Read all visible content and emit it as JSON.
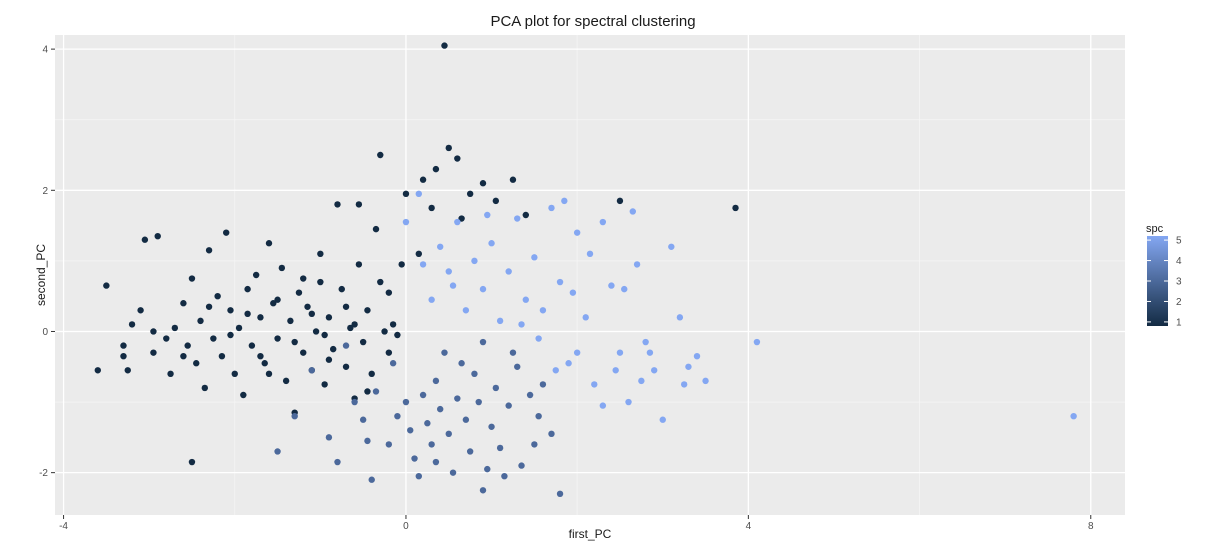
{
  "chart_data": {
    "type": "scatter",
    "title": "PCA plot for spectral clustering",
    "xlabel": "first_PC",
    "ylabel": "second_PC",
    "xlim": [
      -4.1,
      8.4
    ],
    "ylim": [
      -2.6,
      4.2
    ],
    "x_ticks": [
      -4,
      0,
      4,
      8
    ],
    "y_ticks": [
      -2,
      0,
      2,
      4
    ],
    "grid": true,
    "legend": {
      "title": "spc",
      "labels": [
        "5",
        "4",
        "3",
        "2",
        "1"
      ],
      "placement": "right",
      "low_color": "#132B43",
      "high_color": "#84A7F2"
    },
    "colors": {
      "panel_bg": "#EBEBEB",
      "major_grid": "#FFFFFF",
      "minor_grid": "#F5F5F5"
    },
    "points": [
      {
        "x": -3.6,
        "y": -0.55,
        "spc": 1
      },
      {
        "x": -3.5,
        "y": 0.65,
        "spc": 1
      },
      {
        "x": -3.3,
        "y": -0.2,
        "spc": 1
      },
      {
        "x": -3.2,
        "y": 0.1,
        "spc": 1
      },
      {
        "x": -3.05,
        "y": 1.3,
        "spc": 1
      },
      {
        "x": -2.9,
        "y": 1.35,
        "spc": 1
      },
      {
        "x": -3.1,
        "y": 0.3,
        "spc": 1
      },
      {
        "x": -2.95,
        "y": -0.3,
        "spc": 1
      },
      {
        "x": -3.25,
        "y": -0.55,
        "spc": 1
      },
      {
        "x": -2.8,
        "y": -0.1,
        "spc": 1
      },
      {
        "x": -2.7,
        "y": 0.05,
        "spc": 1
      },
      {
        "x": -2.75,
        "y": -0.6,
        "spc": 1
      },
      {
        "x": -2.6,
        "y": 0.4,
        "spc": 1
      },
      {
        "x": -2.55,
        "y": -0.2,
        "spc": 1
      },
      {
        "x": -2.5,
        "y": 0.75,
        "spc": 1
      },
      {
        "x": -2.45,
        "y": -0.45,
        "spc": 1
      },
      {
        "x": -2.4,
        "y": 0.15,
        "spc": 1
      },
      {
        "x": -2.35,
        "y": -0.8,
        "spc": 1
      },
      {
        "x": -2.5,
        "y": -1.85,
        "spc": 1
      },
      {
        "x": -2.3,
        "y": 1.15,
        "spc": 1
      },
      {
        "x": -2.25,
        "y": -0.1,
        "spc": 1
      },
      {
        "x": -2.2,
        "y": 0.5,
        "spc": 1
      },
      {
        "x": -2.15,
        "y": -0.35,
        "spc": 1
      },
      {
        "x": -2.1,
        "y": 1.4,
        "spc": 1
      },
      {
        "x": -2.05,
        "y": 0.3,
        "spc": 1
      },
      {
        "x": -2.0,
        "y": -0.6,
        "spc": 1
      },
      {
        "x": -1.95,
        "y": 0.05,
        "spc": 1
      },
      {
        "x": -1.9,
        "y": -0.9,
        "spc": 1
      },
      {
        "x": -1.85,
        "y": 0.6,
        "spc": 1
      },
      {
        "x": -1.8,
        "y": -0.2,
        "spc": 1
      },
      {
        "x": -1.75,
        "y": 0.8,
        "spc": 1
      },
      {
        "x": -1.7,
        "y": 0.2,
        "spc": 1
      },
      {
        "x": -1.65,
        "y": -0.45,
        "spc": 1
      },
      {
        "x": -1.6,
        "y": 1.25,
        "spc": 1
      },
      {
        "x": -1.55,
        "y": 0.4,
        "spc": 1
      },
      {
        "x": -1.5,
        "y": -0.1,
        "spc": 1
      },
      {
        "x": -1.45,
        "y": 0.9,
        "spc": 1
      },
      {
        "x": -1.4,
        "y": -0.7,
        "spc": 1
      },
      {
        "x": -1.35,
        "y": 0.15,
        "spc": 1
      },
      {
        "x": -1.3,
        "y": -1.15,
        "spc": 1
      },
      {
        "x": -1.25,
        "y": 0.55,
        "spc": 1
      },
      {
        "x": -1.2,
        "y": -0.3,
        "spc": 1
      },
      {
        "x": -1.15,
        "y": 0.35,
        "spc": 1
      },
      {
        "x": -1.1,
        "y": -0.55,
        "spc": 1
      },
      {
        "x": -1.05,
        "y": 0.0,
        "spc": 1
      },
      {
        "x": -1.0,
        "y": 0.7,
        "spc": 1
      },
      {
        "x": -0.95,
        "y": -0.75,
        "spc": 1
      },
      {
        "x": -0.9,
        "y": 0.2,
        "spc": 1
      },
      {
        "x": -0.85,
        "y": -0.25,
        "spc": 1
      },
      {
        "x": -0.8,
        "y": 1.8,
        "spc": 1
      },
      {
        "x": -0.75,
        "y": 0.6,
        "spc": 1
      },
      {
        "x": -0.7,
        "y": -0.5,
        "spc": 1
      },
      {
        "x": -0.65,
        "y": 0.05,
        "spc": 1
      },
      {
        "x": -0.6,
        "y": -0.95,
        "spc": 1
      },
      {
        "x": -0.55,
        "y": 0.95,
        "spc": 1
      },
      {
        "x": -0.5,
        "y": -0.15,
        "spc": 1
      },
      {
        "x": -0.45,
        "y": 0.3,
        "spc": 1
      },
      {
        "x": -0.4,
        "y": -0.6,
        "spc": 1
      },
      {
        "x": -0.35,
        "y": 1.45,
        "spc": 1
      },
      {
        "x": -0.3,
        "y": 2.5,
        "spc": 1
      },
      {
        "x": -0.25,
        "y": 0.0,
        "spc": 1
      },
      {
        "x": -0.2,
        "y": -0.3,
        "spc": 1
      },
      {
        "x": -0.15,
        "y": 0.1,
        "spc": 1
      },
      {
        "x": -0.1,
        "y": -0.05,
        "spc": 1
      },
      {
        "x": -1.7,
        "y": -0.35,
        "spc": 1
      },
      {
        "x": -1.5,
        "y": 0.45,
        "spc": 1
      },
      {
        "x": -1.3,
        "y": -0.15,
        "spc": 1
      },
      {
        "x": -1.1,
        "y": 0.25,
        "spc": 1
      },
      {
        "x": -0.9,
        "y": -0.4,
        "spc": 1
      },
      {
        "x": -0.7,
        "y": 0.35,
        "spc": 1
      },
      {
        "x": -2.05,
        "y": -0.05,
        "spc": 1
      },
      {
        "x": -1.85,
        "y": 0.25,
        "spc": 1
      },
      {
        "x": -2.3,
        "y": 0.35,
        "spc": 1
      },
      {
        "x": -1.6,
        "y": -0.6,
        "spc": 1
      },
      {
        "x": -1.2,
        "y": 0.75,
        "spc": 1
      },
      {
        "x": -0.95,
        "y": -0.05,
        "spc": 1
      },
      {
        "x": -0.6,
        "y": 0.1,
        "spc": 1
      },
      {
        "x": -0.45,
        "y": -0.85,
        "spc": 1
      },
      {
        "x": -0.2,
        "y": 0.55,
        "spc": 1
      },
      {
        "x": -0.55,
        "y": 1.8,
        "spc": 1
      },
      {
        "x": 0.2,
        "y": 2.15,
        "spc": 1
      },
      {
        "x": 0.35,
        "y": 2.3,
        "spc": 1
      },
      {
        "x": 0.5,
        "y": 2.6,
        "spc": 1
      },
      {
        "x": 0.6,
        "y": 2.45,
        "spc": 1
      },
      {
        "x": 0.75,
        "y": 1.95,
        "spc": 1
      },
      {
        "x": 0.9,
        "y": 2.1,
        "spc": 1
      },
      {
        "x": 1.05,
        "y": 1.85,
        "spc": 1
      },
      {
        "x": 1.25,
        "y": 2.15,
        "spc": 1
      },
      {
        "x": 0.45,
        "y": 4.05,
        "spc": 1
      },
      {
        "x": 0.3,
        "y": 1.75,
        "spc": 1
      },
      {
        "x": 0.65,
        "y": 1.6,
        "spc": 1
      },
      {
        "x": 1.4,
        "y": 1.65,
        "spc": 1
      },
      {
        "x": 2.5,
        "y": 1.85,
        "spc": 1
      },
      {
        "x": 3.85,
        "y": 1.75,
        "spc": 1
      },
      {
        "x": 0.15,
        "y": 1.1,
        "spc": 1
      },
      {
        "x": 0.0,
        "y": 1.95,
        "spc": 1
      },
      {
        "x": -3.3,
        "y": -0.35,
        "spc": 1
      },
      {
        "x": -2.6,
        "y": -0.35,
        "spc": 1
      },
      {
        "x": -2.95,
        "y": 0.0,
        "spc": 1
      },
      {
        "x": -1.0,
        "y": 1.1,
        "spc": 1
      },
      {
        "x": -0.3,
        "y": 0.7,
        "spc": 1
      },
      {
        "x": -0.05,
        "y": 0.95,
        "spc": 1
      },
      {
        "x": -1.5,
        "y": -1.7,
        "spc": 3
      },
      {
        "x": -1.3,
        "y": -1.2,
        "spc": 3
      },
      {
        "x": -0.9,
        "y": -1.5,
        "spc": 3
      },
      {
        "x": -0.8,
        "y": -1.85,
        "spc": 3
      },
      {
        "x": -0.5,
        "y": -1.25,
        "spc": 3
      },
      {
        "x": -0.4,
        "y": -2.1,
        "spc": 3
      },
      {
        "x": -0.2,
        "y": -1.6,
        "spc": 3
      },
      {
        "x": 0.0,
        "y": -1.0,
        "spc": 3
      },
      {
        "x": 0.05,
        "y": -1.4,
        "spc": 3
      },
      {
        "x": 0.1,
        "y": -1.8,
        "spc": 3
      },
      {
        "x": 0.2,
        "y": -0.9,
        "spc": 3
      },
      {
        "x": 0.25,
        "y": -1.3,
        "spc": 3
      },
      {
        "x": 0.3,
        "y": -1.6,
        "spc": 3
      },
      {
        "x": 0.35,
        "y": -0.7,
        "spc": 3
      },
      {
        "x": 0.4,
        "y": -1.1,
        "spc": 3
      },
      {
        "x": 0.5,
        "y": -1.45,
        "spc": 3
      },
      {
        "x": 0.55,
        "y": -2.0,
        "spc": 3
      },
      {
        "x": 0.6,
        "y": -0.95,
        "spc": 3
      },
      {
        "x": 0.7,
        "y": -1.25,
        "spc": 3
      },
      {
        "x": 0.75,
        "y": -1.7,
        "spc": 3
      },
      {
        "x": 0.8,
        "y": -0.6,
        "spc": 3
      },
      {
        "x": 0.85,
        "y": -1.0,
        "spc": 3
      },
      {
        "x": 0.9,
        "y": -2.25,
        "spc": 3
      },
      {
        "x": 1.0,
        "y": -1.35,
        "spc": 3
      },
      {
        "x": 1.05,
        "y": -0.8,
        "spc": 3
      },
      {
        "x": 1.1,
        "y": -1.65,
        "spc": 3
      },
      {
        "x": 1.2,
        "y": -1.05,
        "spc": 3
      },
      {
        "x": 1.3,
        "y": -0.5,
        "spc": 3
      },
      {
        "x": 1.35,
        "y": -1.9,
        "spc": 3
      },
      {
        "x": 1.45,
        "y": -0.9,
        "spc": 3
      },
      {
        "x": 1.55,
        "y": -1.2,
        "spc": 3
      },
      {
        "x": 1.6,
        "y": -0.75,
        "spc": 3
      },
      {
        "x": 1.7,
        "y": -1.45,
        "spc": 3
      },
      {
        "x": -0.15,
        "y": -0.45,
        "spc": 3
      },
      {
        "x": 0.45,
        "y": -0.3,
        "spc": 3
      },
      {
        "x": 0.9,
        "y": -0.15,
        "spc": 3
      },
      {
        "x": -0.6,
        "y": -1.0,
        "spc": 3
      },
      {
        "x": -0.35,
        "y": -0.85,
        "spc": 3
      },
      {
        "x": 1.25,
        "y": -0.3,
        "spc": 3
      },
      {
        "x": 1.8,
        "y": -2.3,
        "spc": 3
      },
      {
        "x": 0.15,
        "y": -2.05,
        "spc": 3
      },
      {
        "x": 1.5,
        "y": -1.6,
        "spc": 3
      },
      {
        "x": 0.65,
        "y": -0.45,
        "spc": 3
      },
      {
        "x": -0.1,
        "y": -1.2,
        "spc": 3
      },
      {
        "x": -1.1,
        "y": -0.55,
        "spc": 3
      },
      {
        "x": -0.7,
        "y": -0.2,
        "spc": 3
      },
      {
        "x": -0.45,
        "y": -1.55,
        "spc": 3
      },
      {
        "x": 0.95,
        "y": -1.95,
        "spc": 3
      },
      {
        "x": 1.15,
        "y": -2.05,
        "spc": 3
      },
      {
        "x": 0.35,
        "y": -1.85,
        "spc": 3
      },
      {
        "x": 0.0,
        "y": 1.55,
        "spc": 5
      },
      {
        "x": 0.15,
        "y": 1.95,
        "spc": 5
      },
      {
        "x": 0.3,
        "y": 0.45,
        "spc": 5
      },
      {
        "x": 0.4,
        "y": 1.2,
        "spc": 5
      },
      {
        "x": 0.5,
        "y": 0.85,
        "spc": 5
      },
      {
        "x": 0.6,
        "y": 1.55,
        "spc": 5
      },
      {
        "x": 0.7,
        "y": 0.3,
        "spc": 5
      },
      {
        "x": 0.8,
        "y": 1.0,
        "spc": 5
      },
      {
        "x": 0.9,
        "y": 0.6,
        "spc": 5
      },
      {
        "x": 1.0,
        "y": 1.25,
        "spc": 5
      },
      {
        "x": 1.1,
        "y": 0.15,
        "spc": 5
      },
      {
        "x": 1.2,
        "y": 0.85,
        "spc": 5
      },
      {
        "x": 1.3,
        "y": 1.6,
        "spc": 5
      },
      {
        "x": 1.4,
        "y": 0.45,
        "spc": 5
      },
      {
        "x": 1.5,
        "y": 1.05,
        "spc": 5
      },
      {
        "x": 1.6,
        "y": 0.3,
        "spc": 5
      },
      {
        "x": 1.7,
        "y": 1.75,
        "spc": 5
      },
      {
        "x": 1.8,
        "y": 0.7,
        "spc": 5
      },
      {
        "x": 1.9,
        "y": -0.45,
        "spc": 5
      },
      {
        "x": 2.0,
        "y": 1.4,
        "spc": 5
      },
      {
        "x": 2.1,
        "y": 0.2,
        "spc": 5
      },
      {
        "x": 2.2,
        "y": -0.75,
        "spc": 5
      },
      {
        "x": 2.3,
        "y": 1.55,
        "spc": 5
      },
      {
        "x": 2.4,
        "y": 0.65,
        "spc": 5
      },
      {
        "x": 2.5,
        "y": -0.3,
        "spc": 5
      },
      {
        "x": 2.6,
        "y": -1.0,
        "spc": 5
      },
      {
        "x": 2.7,
        "y": 0.95,
        "spc": 5
      },
      {
        "x": 2.8,
        "y": -0.15,
        "spc": 5
      },
      {
        "x": 2.9,
        "y": -0.55,
        "spc": 5
      },
      {
        "x": 3.0,
        "y": -1.25,
        "spc": 5
      },
      {
        "x": 3.1,
        "y": 1.2,
        "spc": 5
      },
      {
        "x": 3.2,
        "y": 0.2,
        "spc": 5
      },
      {
        "x": 3.3,
        "y": -0.5,
        "spc": 5
      },
      {
        "x": 3.4,
        "y": -0.35,
        "spc": 5
      },
      {
        "x": 3.5,
        "y": -0.7,
        "spc": 5
      },
      {
        "x": 4.1,
        "y": -0.15,
        "spc": 5
      },
      {
        "x": 7.8,
        "y": -1.2,
        "spc": 5
      },
      {
        "x": 1.85,
        "y": 1.85,
        "spc": 5
      },
      {
        "x": 2.65,
        "y": 1.7,
        "spc": 5
      },
      {
        "x": 2.0,
        "y": -0.3,
        "spc": 5
      },
      {
        "x": 2.45,
        "y": -0.55,
        "spc": 5
      },
      {
        "x": 1.75,
        "y": -0.55,
        "spc": 5
      },
      {
        "x": 2.85,
        "y": -0.3,
        "spc": 5
      },
      {
        "x": 0.55,
        "y": 0.65,
        "spc": 5
      },
      {
        "x": 1.35,
        "y": 0.1,
        "spc": 5
      },
      {
        "x": 2.3,
        "y": -1.05,
        "spc": 5
      },
      {
        "x": 2.15,
        "y": 1.1,
        "spc": 5
      },
      {
        "x": 1.95,
        "y": 0.55,
        "spc": 5
      },
      {
        "x": 0.95,
        "y": 1.65,
        "spc": 5
      },
      {
        "x": 0.2,
        "y": 0.95,
        "spc": 5
      },
      {
        "x": 2.75,
        "y": -0.7,
        "spc": 5
      },
      {
        "x": 3.25,
        "y": -0.75,
        "spc": 5
      },
      {
        "x": 1.55,
        "y": -0.1,
        "spc": 5
      },
      {
        "x": 2.55,
        "y": 0.6,
        "spc": 5
      }
    ]
  }
}
